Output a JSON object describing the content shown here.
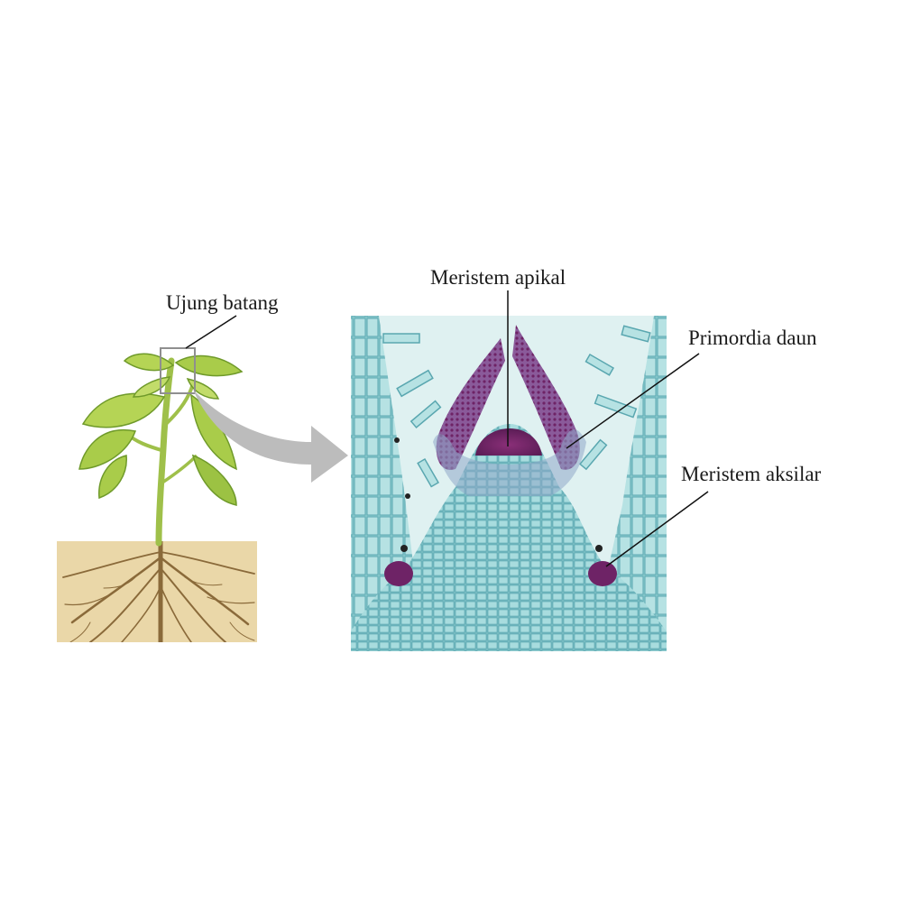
{
  "labels": {
    "shoot_tip": "Ujung batang",
    "apical_meristem": "Meristem apikal",
    "leaf_primordia": "Primordia daun",
    "axillary_meristem": "Meristem aksilar"
  },
  "colors": {
    "soil": "#ead7a8",
    "root": "#8a6a3a",
    "stem": "#9fc04a",
    "leaf": "#a9cc4a",
    "leaf_dark": "#6f9a2a",
    "arrow": "#bcbcbc",
    "micro_background": "#dff1f1",
    "micro_tissue": "#8fcdd0",
    "micro_cells": "#5aa7b0",
    "meristem_purple": "#6e2366",
    "meristem_magenta": "#9b3a7c",
    "leader_line": "#111111"
  }
}
